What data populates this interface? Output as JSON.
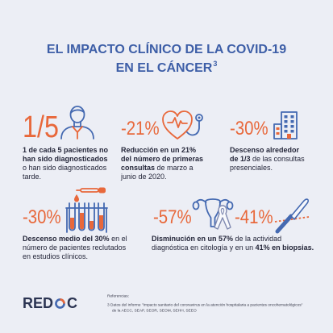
{
  "colors": {
    "background": "#eceef5",
    "title": "#3d5ea7",
    "accent": "#e8683b",
    "icon": "#4469b1",
    "text": "#25273a",
    "logo": "#2b3452"
  },
  "title": {
    "line1": "EL IMPACTO CLÍNICO DE LA COVID-19",
    "line2": "EN EL CÁNCER",
    "superscript": "3"
  },
  "stats": [
    {
      "value": "1/5",
      "icon": "person-icon",
      "desc_bold": "1 de cada 5 pacientes no han sido diagnosticados",
      "desc_normal": "o han sido diagnosticados tarde."
    },
    {
      "value": "-21%",
      "icon": "heart-stethoscope-icon",
      "desc_bold": "Reducción en un 21% del número de primeras consultas",
      "desc_normal": "de marzo a junio de 2020."
    },
    {
      "value": "-30%",
      "icon": "hospital-building-icon",
      "desc_bold": "Descenso alrededor de 1/3",
      "desc_normal": "de las consultas presenciales."
    },
    {
      "value": "-30%",
      "icon": "test-tubes-icon",
      "desc_bold": "Descenso medio del 30%",
      "desc_normal": "en el número de pacientes reclutados en estudios clínicos."
    }
  ],
  "diagnostic": {
    "cytology_value": "-57%",
    "cytology_icon": "uterus-ribbon-icon",
    "biopsy_value": "-41%",
    "biopsy_icon": "scalpel-icon",
    "desc_bold_1": "Disminución en un 57%",
    "desc_normal": "de la actividad diagnóstica en citología y en un",
    "desc_bold_2": "41% en biopsias."
  },
  "footer": {
    "logo": {
      "text_start": "RED",
      "text_end": "C",
      "ring_icon": "logo-ring-icon"
    },
    "references": {
      "heading": "Referencias:",
      "items": [
        {
          "number": "3",
          "text": "Datos del informe \"Impacto sanitario del coronavirus en la atención hospitalaria a pacientes oncohematológicos\"",
          "continuation": "de la AECC, SEAP, SEOR, SEOM, SEHH, SEEO"
        }
      ]
    }
  }
}
